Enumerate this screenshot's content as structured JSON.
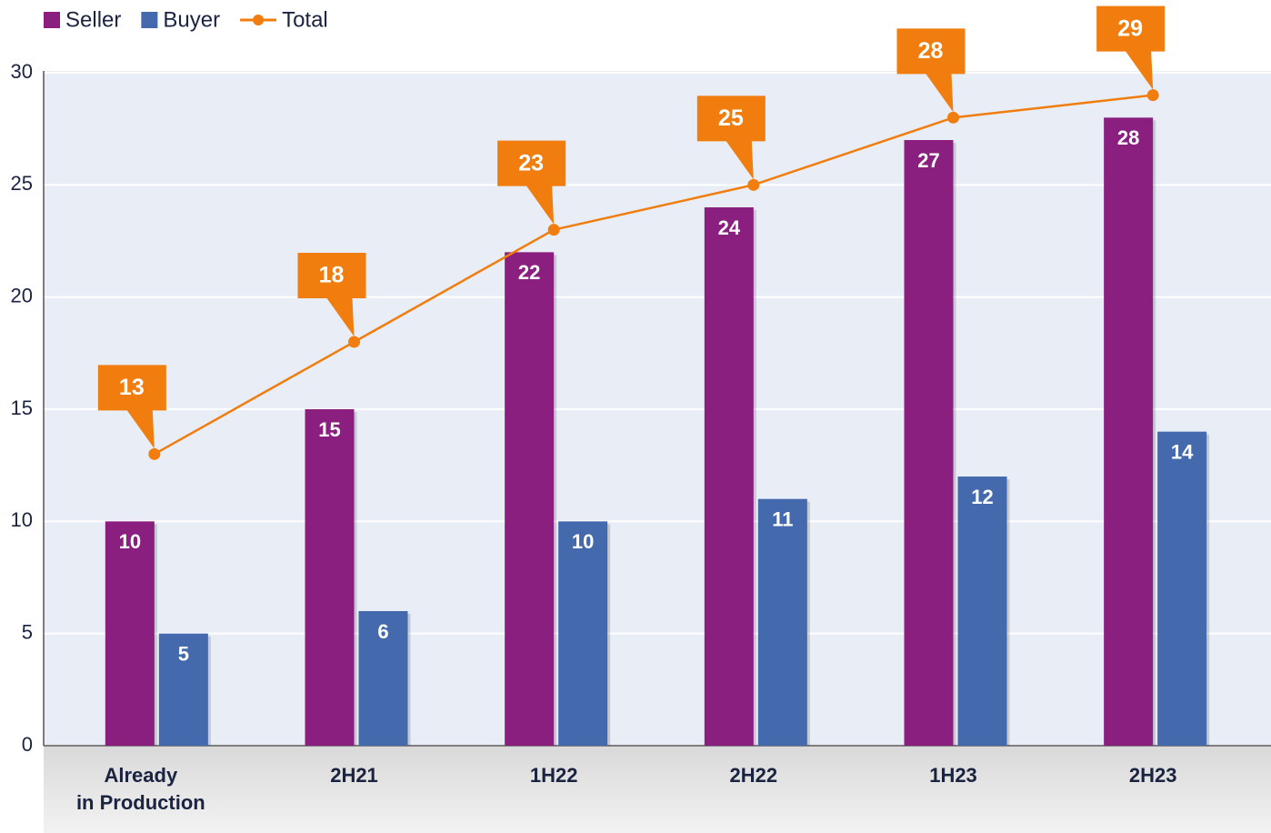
{
  "chart_data": {
    "type": "bar_line",
    "categories": [
      "Already\nin Production",
      "2H21",
      "1H22",
      "2H22",
      "1H23",
      "2H23"
    ],
    "series": [
      {
        "name": "Seller",
        "color": "#8b1f80",
        "type": "bar",
        "values": [
          10,
          15,
          22,
          24,
          27,
          28
        ]
      },
      {
        "name": "Buyer",
        "color": "#4469ad",
        "type": "bar",
        "values": [
          5,
          6,
          10,
          11,
          12,
          14
        ]
      },
      {
        "name": "Total",
        "color": "#f07d0e",
        "type": "line",
        "values": [
          13,
          18,
          23,
          25,
          28,
          29
        ]
      }
    ],
    "ylim": [
      0,
      30
    ],
    "yticks": [
      0,
      5,
      10,
      15,
      20,
      25,
      30
    ],
    "grid": true,
    "legend": "top-left"
  }
}
